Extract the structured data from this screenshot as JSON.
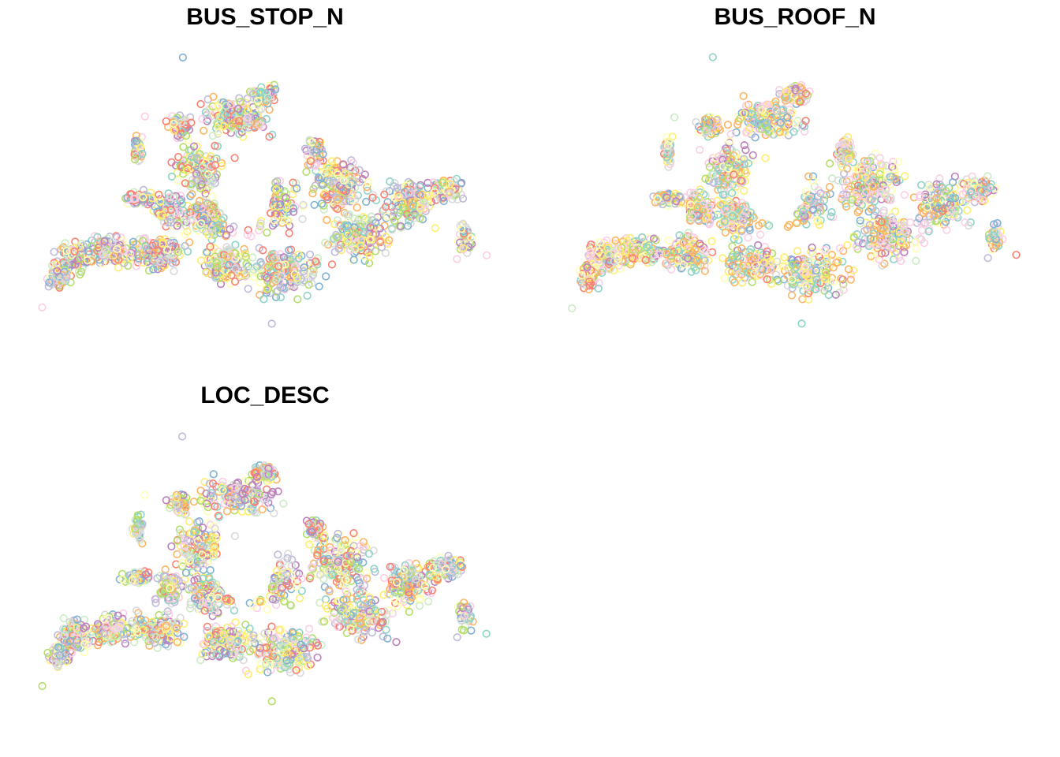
{
  "panels": [
    {
      "id": "bus-stop-n",
      "title": "BUS_STOP_N"
    },
    {
      "id": "bus-roof-n",
      "title": "BUS_ROOF_N"
    },
    {
      "id": "loc-desc",
      "title": "LOC_DESC"
    }
  ],
  "marker_shape": "hollow circle",
  "palette": [
    "#8DD3C7",
    "#FFFFB3",
    "#BEBADA",
    "#FB8072",
    "#80B1D3",
    "#FDB462",
    "#B3DE69",
    "#FCCDE5",
    "#D9D9D9",
    "#BC80BD",
    "#CCEBC5",
    "#FFED6F"
  ],
  "palette_weights": {
    "bus-stop-n": [
      1,
      1,
      1,
      1,
      1,
      1,
      1,
      1,
      1,
      1,
      1,
      1
    ],
    "bus-roof-n": [
      3,
      2,
      1,
      1,
      1,
      3,
      1,
      3,
      1,
      1,
      1,
      2
    ],
    "loc-desc": [
      1,
      1,
      1,
      1,
      1,
      1,
      1,
      1,
      1,
      1,
      1,
      1
    ]
  }
}
